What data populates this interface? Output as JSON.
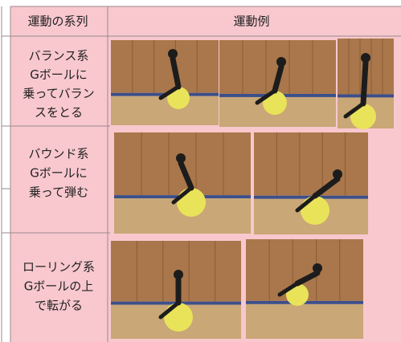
{
  "table": {
    "header": [
      "運動の系列",
      "運動例"
    ],
    "rows": [
      {
        "lines": [
          "バランス系",
          "Gボールに",
          "乗ってバラン",
          "スをとる"
        ]
      },
      {
        "lines": [
          "バウンド系",
          "Gボールに",
          "乗って弾む"
        ]
      },
      {
        "lines": [
          "ローリング系",
          "Gボールの上",
          "で転がる"
        ]
      }
    ]
  }
}
